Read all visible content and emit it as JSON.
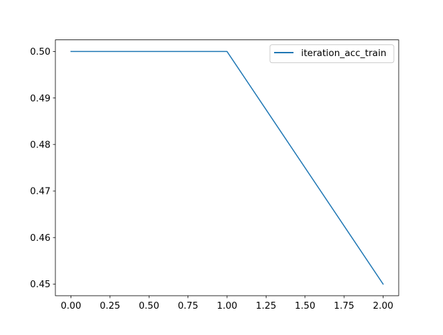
{
  "chart_data": {
    "type": "line",
    "title": "",
    "xlabel": "",
    "ylabel": "",
    "xlim": [
      -0.1,
      2.1
    ],
    "ylim": [
      0.4475,
      0.5025
    ],
    "x_ticks": [
      "0.00",
      "0.25",
      "0.50",
      "0.75",
      "1.00",
      "1.25",
      "1.50",
      "1.75",
      "2.00"
    ],
    "y_ticks": [
      "0.45",
      "0.46",
      "0.47",
      "0.48",
      "0.49",
      "0.50"
    ],
    "grid": false,
    "legend_position": "upper right",
    "series": [
      {
        "name": "iteration_acc_train",
        "color": "#1f77b4",
        "x": [
          0,
          1,
          2
        ],
        "y": [
          0.5,
          0.5,
          0.45
        ]
      }
    ]
  }
}
